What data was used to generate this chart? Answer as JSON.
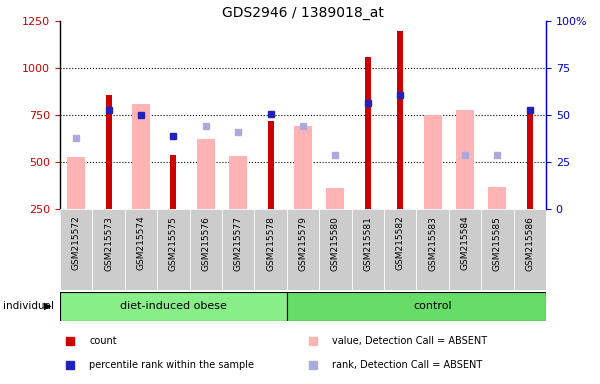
{
  "title": "GDS2946 / 1389018_at",
  "samples": [
    "GSM215572",
    "GSM215573",
    "GSM215574",
    "GSM215575",
    "GSM215576",
    "GSM215577",
    "GSM215578",
    "GSM215579",
    "GSM215580",
    "GSM215581",
    "GSM215582",
    "GSM215583",
    "GSM215584",
    "GSM215585",
    "GSM215586"
  ],
  "count_values": [
    null,
    860,
    null,
    540,
    null,
    null,
    720,
    null,
    null,
    1060,
    1200,
    null,
    null,
    null,
    790
  ],
  "pink_bar_values": [
    530,
    null,
    810,
    null,
    625,
    535,
    null,
    690,
    365,
    null,
    null,
    750,
    780,
    370,
    null
  ],
  "blue_square_values": [
    null,
    775,
    750,
    640,
    null,
    null,
    755,
    null,
    null,
    815,
    855,
    null,
    null,
    null,
    775
  ],
  "light_blue_square_values": [
    630,
    null,
    null,
    null,
    695,
    660,
    null,
    690,
    540,
    null,
    null,
    null,
    540,
    540,
    null
  ],
  "ylim_left": [
    250,
    1250
  ],
  "yticks_left": [
    250,
    500,
    750,
    1000,
    1250
  ],
  "yticks_right": [
    0,
    25,
    50,
    75,
    100
  ],
  "left_color": "#cc0000",
  "right_color": "#0000cc",
  "pink_color": "#ffb3b3",
  "light_blue_color": "#aaaadd",
  "blue_sq_color": "#2222bb",
  "red_bar_color": "#cc0000",
  "group1_color": "#88ee88",
  "group2_color": "#66dd66",
  "tick_bg_color": "#cccccc",
  "legend_items": [
    {
      "label": "count",
      "color": "#cc0000"
    },
    {
      "label": "percentile rank within the sample",
      "color": "#2222bb"
    },
    {
      "label": "value, Detection Call = ABSENT",
      "color": "#ffb3b3"
    },
    {
      "label": "rank, Detection Call = ABSENT",
      "color": "#aaaadd"
    }
  ]
}
